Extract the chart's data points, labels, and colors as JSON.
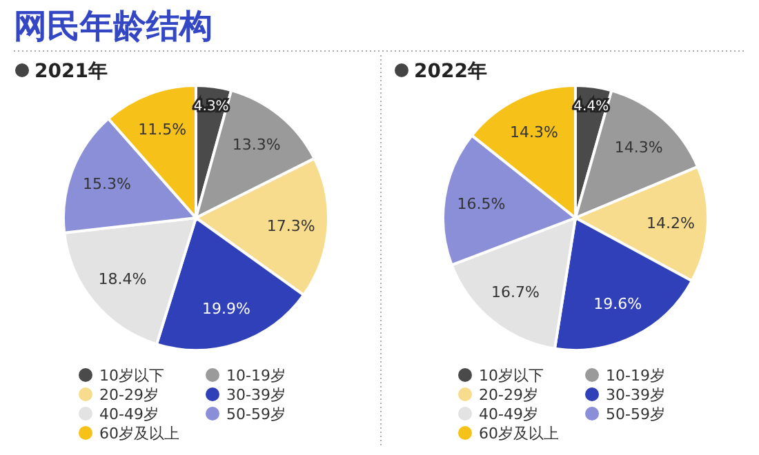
{
  "chart_data": [
    {
      "type": "other",
      "title": "网民年龄结构",
      "color": "#3346c4"
    },
    {
      "type": "pie",
      "title": "2021年",
      "categories": [
        "10岁以下",
        "10-19岁",
        "20-29岁",
        "30-39岁",
        "40-49岁",
        "50-59岁",
        "60岁及以上"
      ],
      "values": [
        4.3,
        13.3,
        17.3,
        19.9,
        18.4,
        15.3,
        11.5
      ],
      "value_labels": [
        "4.3%",
        "13.3%",
        "17.3%",
        "19.9%",
        "18.4%",
        "15.3%",
        "11.5%"
      ],
      "colors": [
        "#4a4a4a",
        "#9a9a9a",
        "#f8dc8e",
        "#3040b8",
        "#e3e3e3",
        "#8a8fd8",
        "#f6c21a"
      ],
      "legend": "bottom"
    },
    {
      "type": "pie",
      "title": "2022年",
      "categories": [
        "10岁以下",
        "10-19岁",
        "20-29岁",
        "30-39岁",
        "40-49岁",
        "50-59岁",
        "60岁及以上"
      ],
      "values": [
        4.4,
        14.3,
        14.2,
        19.6,
        16.7,
        16.5,
        14.3
      ],
      "value_labels": [
        "4.4%",
        "14.3%",
        "14.2%",
        "19.6%",
        "16.7%",
        "16.5%",
        "14.3%"
      ],
      "colors": [
        "#4a4a4a",
        "#9a9a9a",
        "#f8dc8e",
        "#3040b8",
        "#e3e3e3",
        "#8a8fd8",
        "#f6c21a"
      ],
      "legend": "bottom"
    }
  ]
}
